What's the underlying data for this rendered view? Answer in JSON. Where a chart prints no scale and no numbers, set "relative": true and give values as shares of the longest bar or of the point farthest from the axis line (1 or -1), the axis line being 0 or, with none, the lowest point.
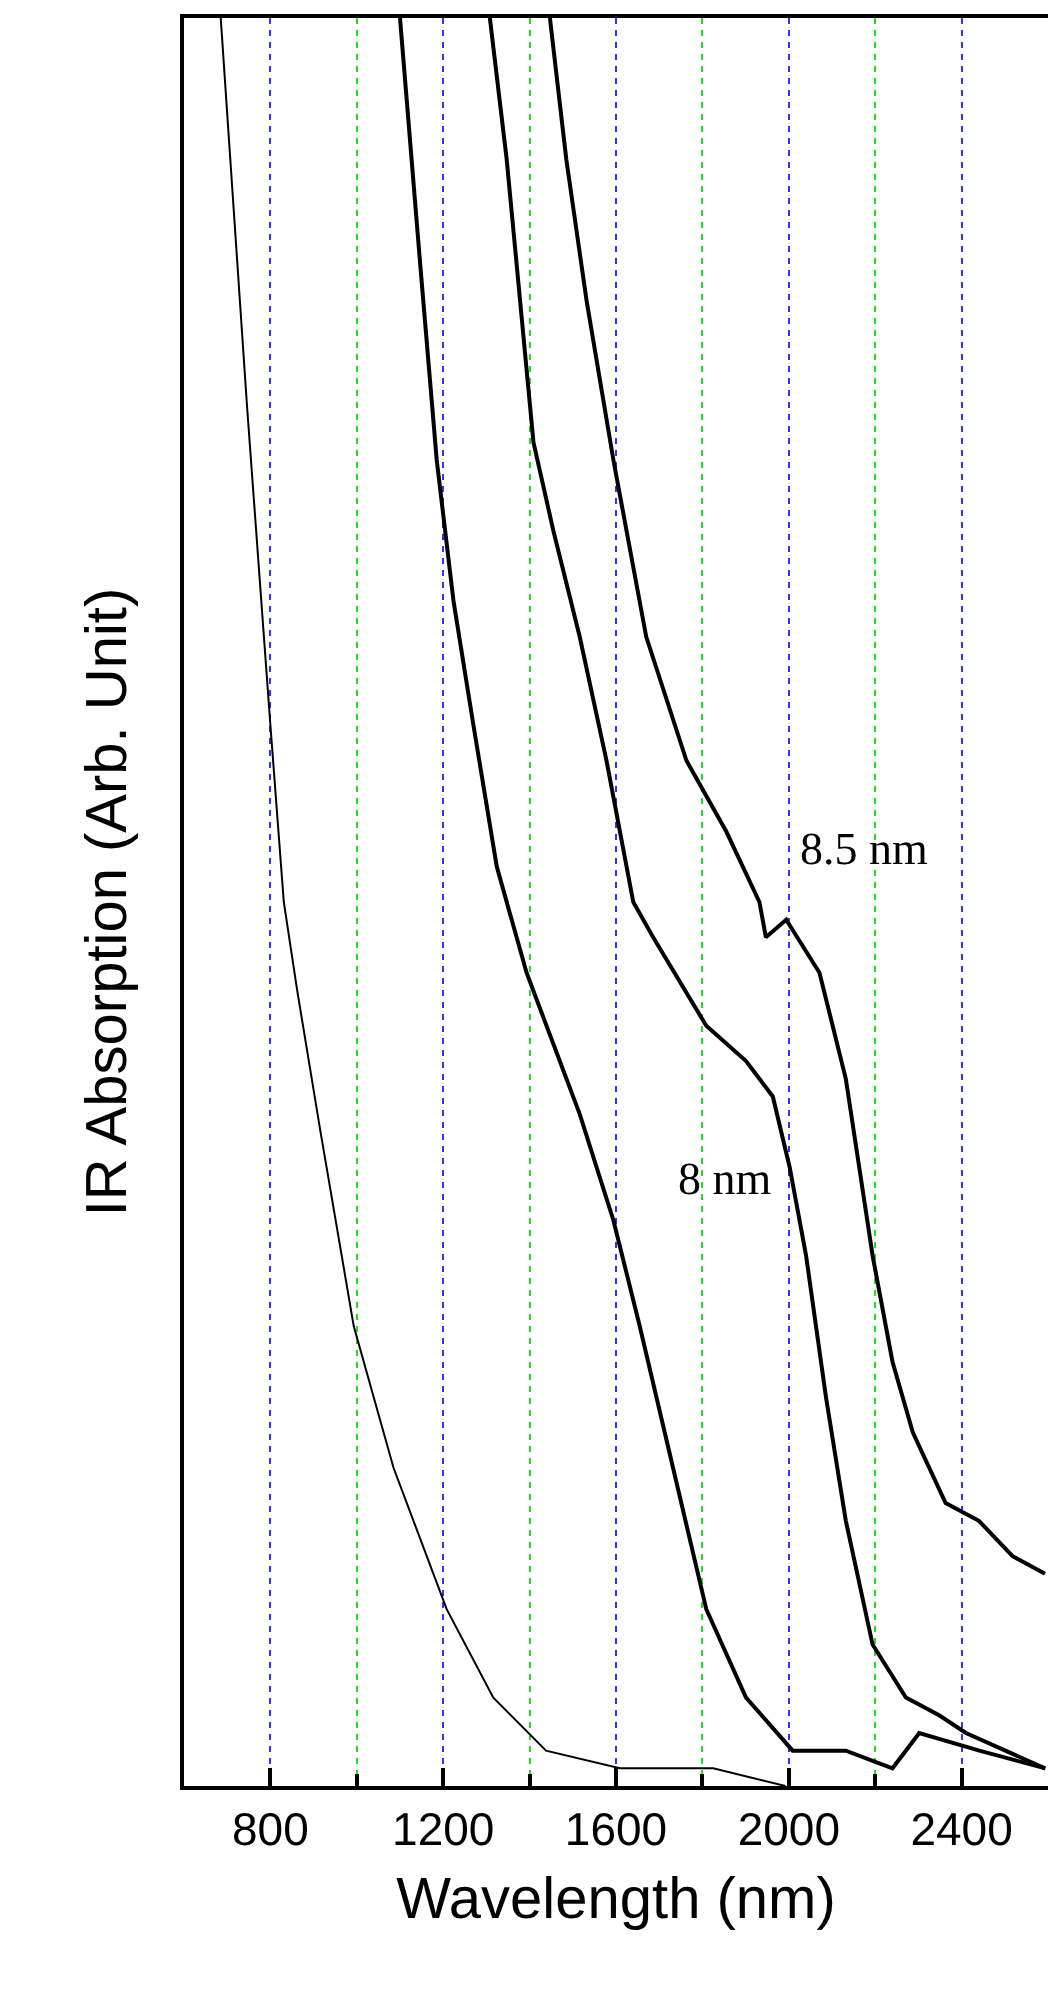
{
  "chart_data": {
    "type": "line",
    "relative": true,
    "xlabel": "Wavelength (nm)",
    "ylabel": "IR Absorption (Arb. Unit)",
    "xlim": [
      600,
      2600
    ],
    "xticks": [
      800,
      {
        "value": 1000,
        "label": null
      },
      1200,
      {
        "value": 1400,
        "label": null
      },
      1600,
      {
        "value": 1800,
        "label": null
      },
      2000,
      {
        "value": 2200,
        "label": null
      },
      2400
    ],
    "grid": "x",
    "tick_labels": "x",
    "marker": "none",
    "line_style": "solid",
    "series": [
      {
        "color": "#000000",
        "x": [
          685,
          746,
          800,
          831,
          862,
          916,
          993,
          1085,
          1208,
          1316,
          1438,
          1609,
          1825,
          1992
        ],
        "values": [
          1.0,
          0.78,
          0.6,
          0.5,
          0.45,
          0.37,
          0.26,
          0.18,
          0.1,
          0.05,
          0.02,
          0.01,
          0.01,
          0.0
        ]
      },
      {
        "color": "#000000",
        "x": [
          1100,
          1147,
          1185,
          1224,
          1270,
          1324,
          1393,
          1516,
          1594,
          1655,
          1732,
          1809,
          1901,
          2009,
          2132,
          2240,
          2302,
          2441,
          2594
        ],
        "values": [
          1.0,
          0.86,
          0.75,
          0.67,
          0.6,
          0.52,
          0.46,
          0.38,
          0.32,
          0.26,
          0.18,
          0.1,
          0.05,
          0.02,
          0.02,
          0.01,
          0.03,
          0.02,
          0.01
        ]
      },
      {
        "color": "#000000",
        "x": [
          1308,
          1347,
          1378,
          1409,
          1455,
          1516,
          1578,
          1640,
          1686,
          1809,
          1901,
          1963,
          2002,
          2040,
          2086,
          2132,
          2194,
          2271,
          2348,
          2410,
          2593
        ],
        "values": [
          1.0,
          0.92,
          0.84,
          0.76,
          0.71,
          0.65,
          0.58,
          0.5,
          0.48,
          0.43,
          0.41,
          0.39,
          0.35,
          0.3,
          0.22,
          0.15,
          0.08,
          0.05,
          0.04,
          0.03,
          0.01
        ]
      },
      {
        "color": "#000000",
        "x": [
          1447,
          1485,
          1532,
          1594,
          1670,
          1763,
          1855,
          1932,
          1947,
          1994,
          2071,
          2132,
          2163,
          2194,
          2240,
          2287,
          2363,
          2440,
          2518,
          2593
        ],
        "values": [
          1.0,
          0.92,
          0.84,
          0.75,
          0.65,
          0.58,
          0.54,
          0.5,
          0.48,
          0.49,
          0.46,
          0.4,
          0.35,
          0.3,
          0.24,
          0.2,
          0.16,
          0.15,
          0.13,
          0.12
        ]
      }
    ],
    "annotations": [
      "8.5 nm",
      "8 nm"
    ]
  }
}
